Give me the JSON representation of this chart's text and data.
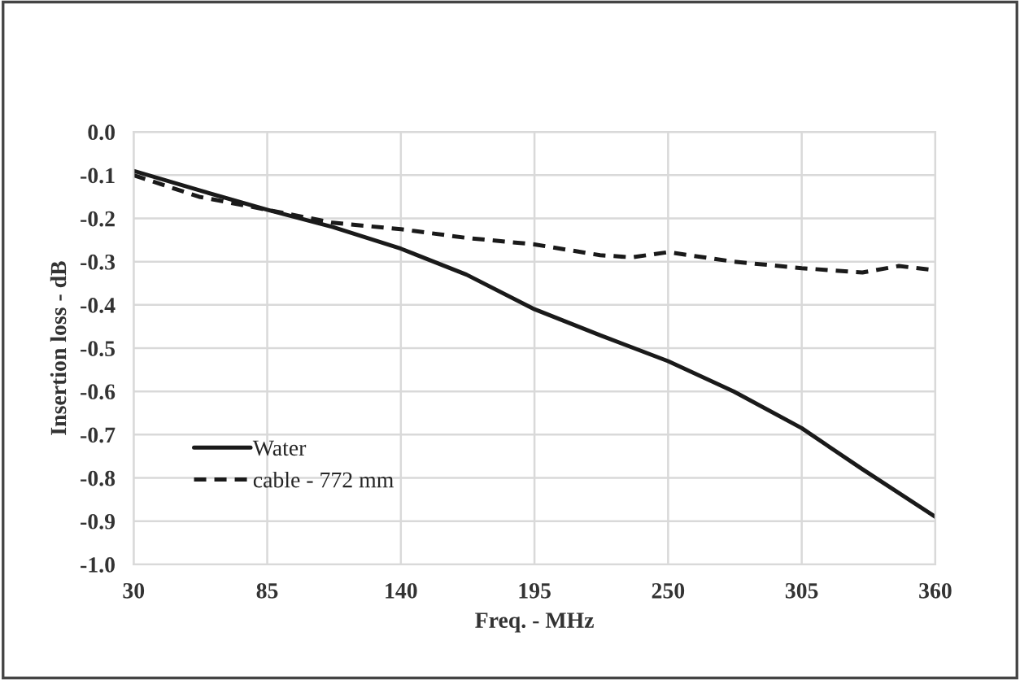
{
  "chart_data": {
    "type": "line",
    "xlabel": "Freq. - MHz",
    "ylabel": "Insertion loss - dB",
    "xlim": [
      30,
      360
    ],
    "xticks": [
      30,
      85,
      140,
      195,
      250,
      305,
      360
    ],
    "ylim": [
      -1.0,
      0.0
    ],
    "yticks": [
      {
        "value": -1.0,
        "label": "-1.0"
      },
      {
        "value": -0.9,
        "label": "-0.9"
      },
      {
        "value": -0.8,
        "label": "-0.8"
      },
      {
        "value": -0.7,
        "label": "-0.7"
      },
      {
        "value": -0.6,
        "label": "-0.6"
      },
      {
        "value": -0.5,
        "label": "-0.5"
      },
      {
        "value": -0.4,
        "label": "-0.4"
      },
      {
        "value": -0.3,
        "label": "-0.3"
      },
      {
        "value": -0.2,
        "label": "-0.2"
      },
      {
        "value": -0.1,
        "label": "-0.1"
      },
      {
        "value": 0.0,
        "label": "0.0"
      }
    ],
    "grid": true,
    "legend": "bottom left",
    "marker": "none",
    "series": [
      {
        "name": "Water",
        "color": "#1a1a1a",
        "line_style": "solid",
        "x": [
          30,
          57,
          85,
          112,
          140,
          167,
          195,
          222,
          250,
          277,
          305,
          330,
          360
        ],
        "values": [
          -0.09,
          -0.135,
          -0.18,
          -0.22,
          -0.27,
          -0.33,
          -0.41,
          -0.47,
          -0.53,
          -0.6,
          -0.685,
          -0.78,
          -0.89
        ]
      },
      {
        "name": "cable - 772 mm",
        "color": "#1a1a1a",
        "line_style": "dashed",
        "x": [
          30,
          57,
          85,
          112,
          140,
          167,
          195,
          222,
          235,
          250,
          277,
          305,
          330,
          345,
          360
        ],
        "values": [
          -0.1,
          -0.15,
          -0.18,
          -0.21,
          -0.225,
          -0.245,
          -0.26,
          -0.285,
          -0.29,
          -0.278,
          -0.3,
          -0.315,
          -0.325,
          -0.31,
          -0.32
        ]
      }
    ]
  }
}
